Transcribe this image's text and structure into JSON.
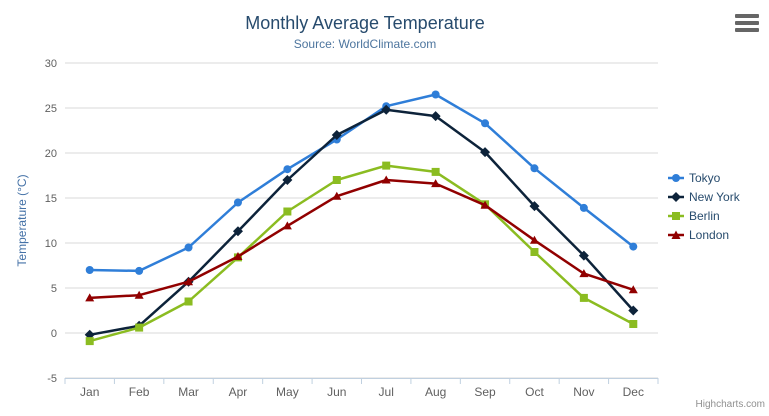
{
  "chart": {
    "title": "Monthly Average Temperature",
    "subtitle": "Source: WorldClimate.com",
    "credits": "Highcharts.com"
  },
  "chart_data": {
    "type": "line",
    "title": "Monthly Average Temperature",
    "subtitle": "Source: WorldClimate.com",
    "categories": [
      "Jan",
      "Feb",
      "Mar",
      "Apr",
      "May",
      "Jun",
      "Jul",
      "Aug",
      "Sep",
      "Oct",
      "Nov",
      "Dec"
    ],
    "series": [
      {
        "name": "Tokyo",
        "color": "#2f7ed8",
        "marker": "circle",
        "values": [
          7.0,
          6.9,
          9.5,
          14.5,
          18.2,
          21.5,
          25.2,
          26.5,
          23.3,
          18.3,
          13.9,
          9.6
        ]
      },
      {
        "name": "New York",
        "color": "#0d233a",
        "marker": "diamond",
        "values": [
          -0.2,
          0.8,
          5.7,
          11.3,
          17.0,
          22.0,
          24.8,
          24.1,
          20.1,
          14.1,
          8.6,
          2.5
        ]
      },
      {
        "name": "Berlin",
        "color": "#8bbc21",
        "marker": "square",
        "values": [
          -0.9,
          0.6,
          3.5,
          8.4,
          13.5,
          17.0,
          18.6,
          17.9,
          14.3,
          9.0,
          3.9,
          1.0
        ]
      },
      {
        "name": "London",
        "color": "#910000",
        "marker": "triangle",
        "values": [
          3.9,
          4.2,
          5.7,
          8.5,
          11.9,
          15.2,
          17.0,
          16.6,
          14.2,
          10.3,
          6.6,
          4.8
        ]
      }
    ],
    "xlabel": "",
    "ylabel": "Temperature (°C)",
    "ylim": [
      -5,
      30
    ],
    "ytick_step": 5,
    "grid": true,
    "legend_position": "right"
  },
  "colors": {
    "title": "#274b6d",
    "subtitle": "#4d759e",
    "axis_labels": "#606060",
    "axis_title": "#4572a7",
    "gridline": "#d8d8d8",
    "axis_line": "#c0d0e0",
    "credits": "#909090"
  }
}
